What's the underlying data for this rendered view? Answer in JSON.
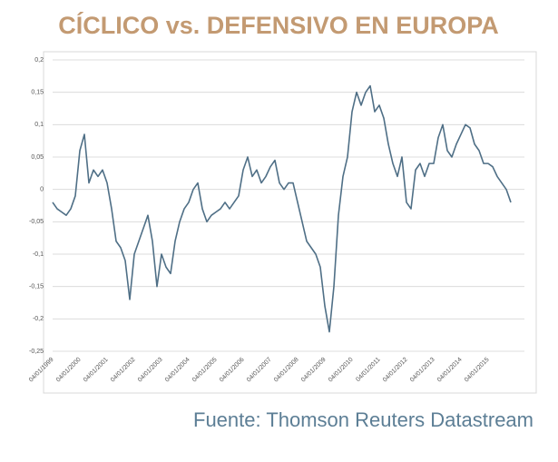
{
  "chart_data": {
    "type": "line",
    "title": "CÍCLICO vs. DEFENSIVO EN EUROPA",
    "source": "Fuente: Thomson Reuters Datastream",
    "categories": [
      "04/01/1999",
      null,
      null,
      null,
      null,
      null,
      "04/01/2000",
      null,
      null,
      null,
      null,
      null,
      "04/01/2001",
      null,
      null,
      null,
      null,
      null,
      "04/01/2002",
      null,
      null,
      null,
      null,
      null,
      "04/01/2003",
      null,
      null,
      null,
      null,
      null,
      "04/01/2004",
      null,
      null,
      null,
      null,
      null,
      "04/01/2005",
      null,
      null,
      null,
      null,
      null,
      "04/01/2006",
      null,
      null,
      null,
      null,
      null,
      "04/01/2007",
      null,
      null,
      null,
      null,
      null,
      "04/01/2008",
      null,
      null,
      null,
      null,
      null,
      "04/01/2009",
      null,
      null,
      null,
      null,
      null,
      "04/01/2010",
      null,
      null,
      null,
      null,
      null,
      "04/01/2011",
      null,
      null,
      null,
      null,
      null,
      "04/01/2012",
      null,
      null,
      null,
      null,
      null,
      "04/01/2013",
      null,
      null,
      null,
      null,
      null,
      "04/01/2014",
      null,
      null,
      null,
      null,
      null,
      "04/01/2015",
      null,
      null,
      null,
      null,
      null
    ],
    "values": [
      -0.02,
      -0.03,
      -0.035,
      -0.04,
      -0.03,
      -0.01,
      0.06,
      0.085,
      0.01,
      0.03,
      0.02,
      0.03,
      0.01,
      -0.03,
      -0.08,
      -0.09,
      -0.11,
      -0.17,
      -0.1,
      -0.08,
      -0.06,
      -0.04,
      -0.08,
      -0.15,
      -0.1,
      -0.12,
      -0.13,
      -0.08,
      -0.05,
      -0.03,
      -0.02,
      0.0,
      0.01,
      -0.03,
      -0.05,
      -0.04,
      -0.035,
      -0.03,
      -0.02,
      -0.03,
      -0.02,
      -0.01,
      0.03,
      0.05,
      0.02,
      0.03,
      0.01,
      0.02,
      0.035,
      0.045,
      0.01,
      0.0,
      0.01,
      0.01,
      -0.02,
      -0.05,
      -0.08,
      -0.09,
      -0.1,
      -0.12,
      -0.18,
      -0.22,
      -0.15,
      -0.04,
      0.02,
      0.05,
      0.12,
      0.15,
      0.13,
      0.15,
      0.16,
      0.12,
      0.13,
      0.11,
      0.07,
      0.04,
      0.02,
      0.05,
      -0.02,
      -0.03,
      0.03,
      0.04,
      0.02,
      0.04,
      0.04,
      0.08,
      0.1,
      0.06,
      0.05,
      0.07,
      0.085,
      0.1,
      0.095,
      0.07,
      0.06,
      0.04,
      0.04,
      0.035,
      0.02,
      0.01,
      0.0,
      -0.02
    ],
    "color": "#4f6f86",
    "ylim": [
      -0.25,
      0.2
    ],
    "yticks": [
      {
        "value": 0.2,
        "label": "0,2"
      },
      {
        "value": 0.15,
        "label": "0,15"
      },
      {
        "value": 0.1,
        "label": "0,1"
      },
      {
        "value": 0.05,
        "label": "0,05"
      },
      0,
      {
        "value": -0.05,
        "label": "-0,05"
      },
      {
        "value": -0.1,
        "label": "-0,1"
      },
      {
        "value": -0.15,
        "label": "-0,15"
      },
      {
        "value": -0.2,
        "label": "-0,2"
      },
      {
        "value": -0.25,
        "label": "-0,25"
      }
    ],
    "grid": true
  }
}
